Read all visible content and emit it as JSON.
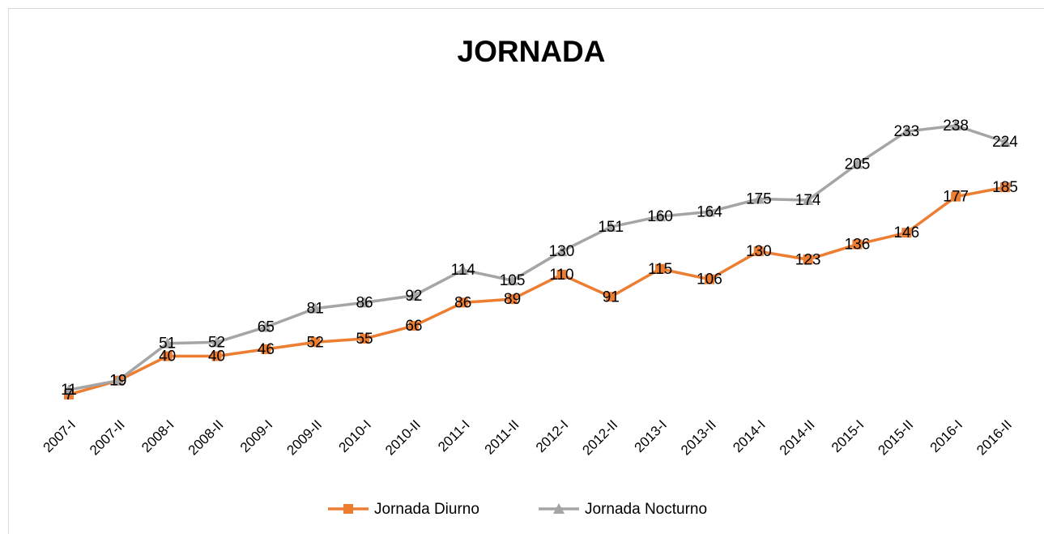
{
  "chart_data": {
    "type": "line",
    "title": "JORNADA",
    "categories": [
      "2007-I",
      "2007-II",
      "2008-I",
      "2008-II",
      "2009-I",
      "2009-II",
      "2010-I",
      "2010-II",
      "2011-I",
      "2011-II",
      "2012-I",
      "2012-II",
      "2013-I",
      "2013-II",
      "2014-I",
      "2014-II",
      "2015-I",
      "2015-II",
      "2016-I",
      "2016-II"
    ],
    "series": [
      {
        "name": "Jornada Diurno",
        "color": "#ED7D31",
        "marker": "square",
        "values": [
          7,
          19,
          40,
          40,
          46,
          52,
          55,
          66,
          86,
          89,
          110,
          91,
          115,
          106,
          130,
          123,
          136,
          146,
          177,
          185
        ]
      },
      {
        "name": "Jornada Nocturno",
        "color": "#A5A5A5",
        "marker": "triangle",
        "values": [
          11,
          19,
          51,
          52,
          65,
          81,
          86,
          92,
          114,
          105,
          130,
          151,
          160,
          164,
          175,
          174,
          205,
          233,
          238,
          224
        ]
      }
    ],
    "legend": "bottom",
    "grid": false
  }
}
